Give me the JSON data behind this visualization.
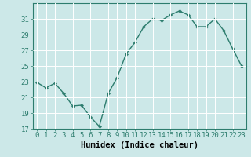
{
  "x": [
    0,
    1,
    2,
    3,
    4,
    5,
    6,
    7,
    8,
    9,
    10,
    11,
    12,
    13,
    14,
    15,
    16,
    17,
    18,
    19,
    20,
    21,
    22,
    23
  ],
  "y": [
    22.9,
    22.2,
    22.8,
    21.5,
    19.9,
    20.0,
    18.5,
    17.3,
    21.5,
    23.5,
    26.5,
    28.0,
    30.0,
    31.0,
    30.8,
    31.5,
    32.0,
    31.5,
    30.0,
    30.0,
    31.0,
    29.5,
    27.2,
    25.0
  ],
  "line_color": "#2d7d6e",
  "marker": "D",
  "markersize": 2.2,
  "linewidth": 1.0,
  "bg_color": "#cce8e8",
  "grid_color": "#ffffff",
  "xlabel": "Humidex (Indice chaleur)",
  "ylim": [
    17,
    33
  ],
  "xlim": [
    -0.5,
    23.5
  ],
  "yticks": [
    17,
    19,
    21,
    23,
    25,
    27,
    29,
    31
  ],
  "xticks": [
    0,
    1,
    2,
    3,
    4,
    5,
    6,
    7,
    8,
    9,
    10,
    11,
    12,
    13,
    14,
    15,
    16,
    17,
    18,
    19,
    20,
    21,
    22,
    23
  ],
  "xlabel_fontsize": 7.5,
  "tick_fontsize": 6.5
}
